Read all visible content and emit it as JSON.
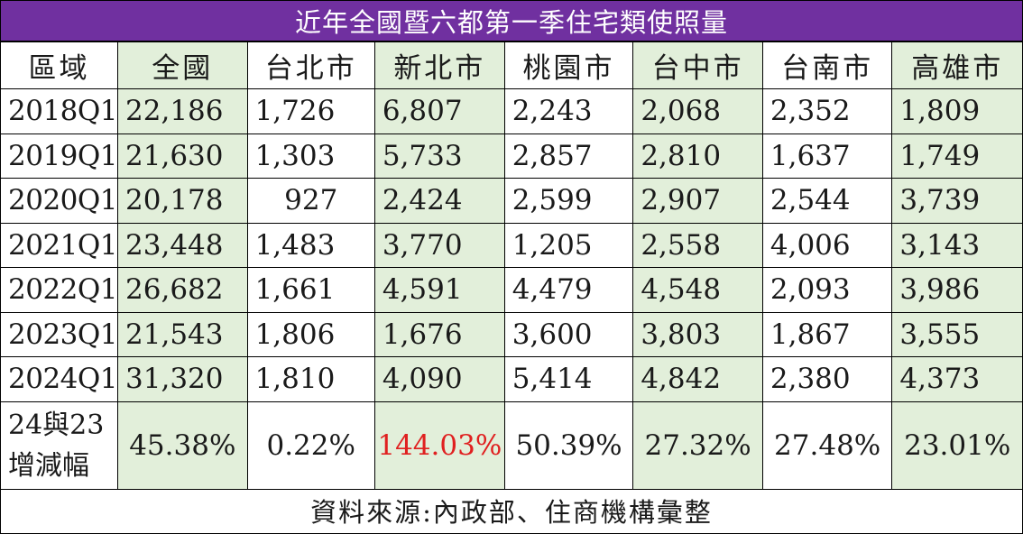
{
  "title": "近年全國暨六都第一季住宅類使照量",
  "header": {
    "region": "區域",
    "columns": [
      "全國",
      "台北市",
      "新北市",
      "桃園市",
      "台中市",
      "台南市",
      "高雄市"
    ]
  },
  "rows": [
    {
      "label": "2018Q1",
      "values": [
        "22,186",
        "1,726",
        "6,807",
        "2,243",
        "2,068",
        "2,352",
        "1,809"
      ]
    },
    {
      "label": "2019Q1",
      "values": [
        "21,630",
        "1,303",
        "5,733",
        "2,857",
        "2,810",
        "1,637",
        "1,749"
      ]
    },
    {
      "label": "2020Q1",
      "values": [
        "20,178",
        "927",
        "2,424",
        "2,599",
        "2,907",
        "2,544",
        "3,739"
      ]
    },
    {
      "label": "2021Q1",
      "values": [
        "23,448",
        "1,483",
        "3,770",
        "1,205",
        "2,558",
        "4,006",
        "3,143"
      ]
    },
    {
      "label": "2022Q1",
      "values": [
        "26,682",
        "1,661",
        "4,591",
        "4,479",
        "4,548",
        "2,093",
        "3,986"
      ]
    },
    {
      "label": "2023Q1",
      "values": [
        "21,543",
        "1,806",
        "1,676",
        "3,600",
        "3,803",
        "1,867",
        "3,555"
      ]
    },
    {
      "label": "2024Q1",
      "values": [
        "31,320",
        "1,810",
        "4,090",
        "5,414",
        "4,842",
        "2,380",
        "4,373"
      ]
    }
  ],
  "change_row": {
    "label_line1": "24與23",
    "label_line2": "增減幅",
    "values": [
      "45.38%",
      "0.22%",
      "144.03%",
      "50.39%",
      "27.32%",
      "27.48%",
      "23.01%"
    ]
  },
  "source": "資料來源:內政部、住商機構彙整",
  "colors": {
    "title_bg": "#7030a0",
    "highlight_bg": "#e2efda",
    "emphasis_text": "#e02020"
  }
}
